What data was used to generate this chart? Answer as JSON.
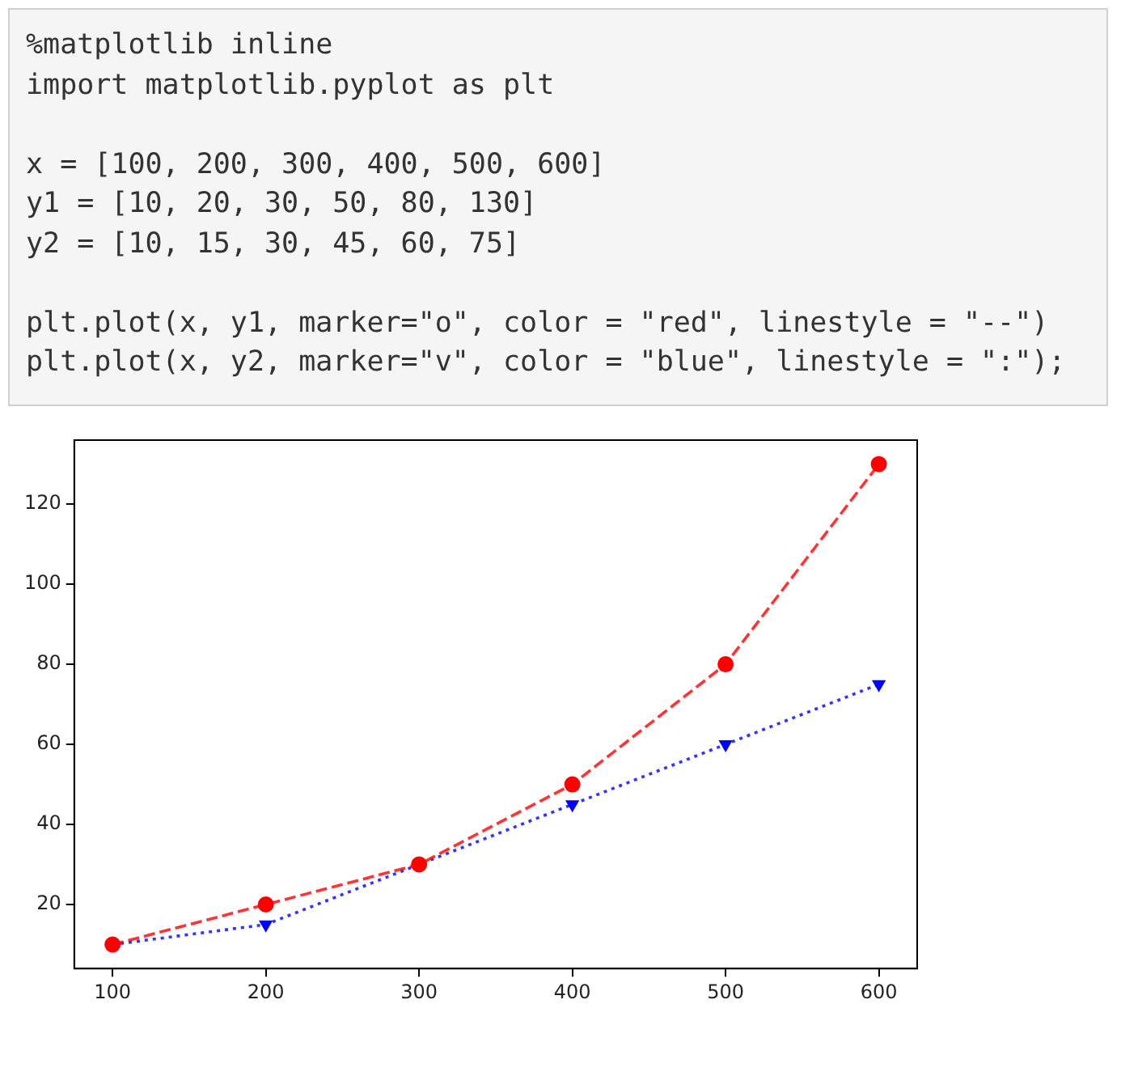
{
  "chart_data": {
    "type": "line",
    "annotations": [
      "%matplotlib inline\nimport matplotlib.pyplot as plt",
      "x = [100, 200, 300, 400, 500, 600]\ny1 = [10, 20, 30, 50, 80, 130]\ny2 = [10, 15, 30, 45, 60, 75]",
      "plt.plot(x, y1, marker=\"o\", color = \"red\", linestyle = \"--\")\nplt.plot(x, y2, marker=\"v\", color = \"blue\", linestyle = \":\");"
    ],
    "x": [
      100,
      200,
      300,
      400,
      500,
      600
    ],
    "series": [
      {
        "color": "#ff0000",
        "values": [
          10,
          20,
          30,
          50,
          80,
          130
        ],
        "marker": "circle",
        "line_style": "dashed"
      },
      {
        "color": "#0000ff",
        "values": [
          10,
          15,
          30,
          45,
          60,
          75
        ],
        "marker": "triangle",
        "line_style": "dotted"
      }
    ],
    "xlim": [
      75,
      625
    ],
    "xticks": [
      100,
      200,
      300,
      400,
      500,
      600
    ],
    "ylim": [
      4,
      136
    ],
    "yticks": [
      20,
      40,
      60,
      80,
      100,
      120
    ],
    "grid": false,
    "legend": false
  }
}
